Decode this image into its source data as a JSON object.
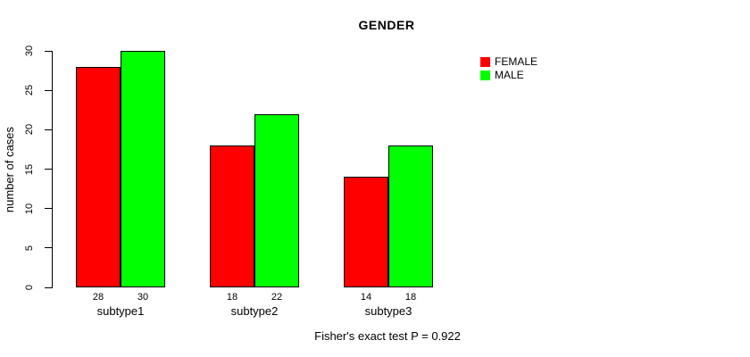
{
  "chart_data": {
    "type": "bar",
    "title": "GENDER",
    "xlabel": "",
    "ylabel": "number of cases",
    "categories": [
      "subtype1",
      "subtype2",
      "subtype3"
    ],
    "series": [
      {
        "name": "FEMALE",
        "color": "#ff0000",
        "values": [
          28,
          18,
          14
        ]
      },
      {
        "name": "MALE",
        "color": "#00ff00",
        "values": [
          30,
          22,
          18
        ]
      }
    ],
    "ylim": [
      0,
      30
    ],
    "yticks": [
      0,
      5,
      10,
      15,
      20,
      25,
      30
    ],
    "bar_value_labels": [
      [
        28,
        30
      ],
      [
        18,
        22
      ],
      [
        14,
        18
      ]
    ],
    "grid": false,
    "legend_position": "right-top",
    "legend": [
      {
        "label": "FEMALE",
        "color": "#ff0000"
      },
      {
        "label": "MALE",
        "color": "#00ff00"
      }
    ],
    "caption": "Fisher's exact test P = 0.922"
  }
}
